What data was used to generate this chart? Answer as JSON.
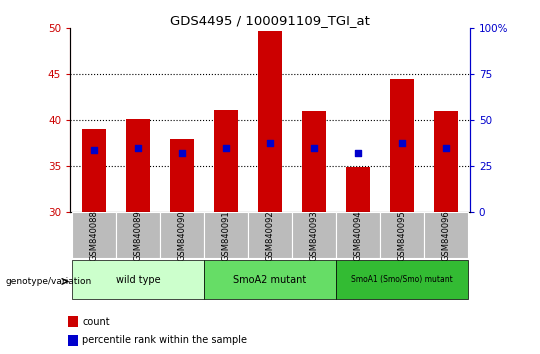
{
  "title": "GDS4495 / 100091109_TGI_at",
  "samples": [
    "GSM840088",
    "GSM840089",
    "GSM840090",
    "GSM840091",
    "GSM840092",
    "GSM840093",
    "GSM840094",
    "GSM840095",
    "GSM840096"
  ],
  "count_values": [
    39.1,
    40.2,
    38.0,
    41.1,
    49.7,
    41.0,
    34.9,
    44.5,
    41.0
  ],
  "percentile_values": [
    36.8,
    37.0,
    36.5,
    37.0,
    37.5,
    37.0,
    36.4,
    37.5,
    37.0
  ],
  "ymin": 30,
  "ymax": 50,
  "yticks": [
    30,
    35,
    40,
    45,
    50
  ],
  "right_yticks": [
    0,
    25,
    50,
    75,
    100
  ],
  "right_tick_labels": [
    "0",
    "25",
    "50",
    "75",
    "100%"
  ],
  "bar_color": "#cc0000",
  "dot_color": "#0000cc",
  "bar_width": 0.55,
  "groups": [
    {
      "label": "wild type",
      "start": 0,
      "end": 3,
      "color": "#ccffcc"
    },
    {
      "label": "SmoA2 mutant",
      "start": 3,
      "end": 6,
      "color": "#66dd66"
    },
    {
      "label": "SmoA1 (Smo/Smo) mutant",
      "start": 6,
      "end": 9,
      "color": "#33bb33"
    }
  ],
  "legend_count_label": "count",
  "legend_percentile_label": "percentile rank within the sample",
  "genotype_label": "genotype/variation",
  "left_axis_color": "#cc0000",
  "right_axis_color": "#0000cc",
  "tick_label_bg": "#bbbbbb"
}
